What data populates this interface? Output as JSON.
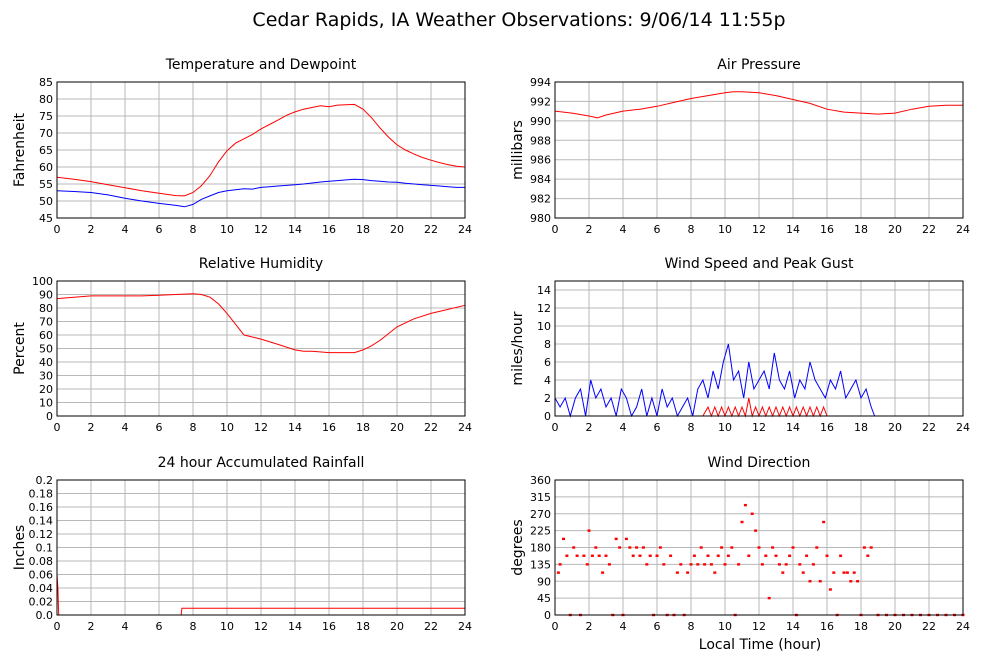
{
  "page_title": "Cedar Rapids, IA Weather Observations: 9/06/14 11:55p",
  "x_axis_title": "Local Time (hour)",
  "chart_data": [
    {
      "id": "temperature",
      "type": "line",
      "title": "Temperature and Dewpoint",
      "xlabel": "",
      "ylabel": "Fahrenheit",
      "xlim": [
        0,
        24
      ],
      "ylim": [
        45,
        85
      ],
      "xticks": [
        0,
        2,
        4,
        6,
        8,
        10,
        12,
        14,
        16,
        18,
        20,
        22,
        24
      ],
      "yticks": [
        45,
        50,
        55,
        60,
        65,
        70,
        75,
        80,
        85
      ],
      "grid": true,
      "series": [
        {
          "color": "#ff0000",
          "x": [
            0,
            1,
            2,
            3,
            4,
            5,
            6,
            7,
            7.5,
            8,
            8.5,
            9,
            9.5,
            10,
            10.5,
            11,
            11.5,
            12,
            12.5,
            13,
            13.5,
            14,
            14.5,
            15,
            15.5,
            16,
            16.5,
            17,
            17.5,
            18,
            18.5,
            19,
            19.5,
            20,
            20.5,
            21,
            21.5,
            22,
            22.5,
            23,
            23.5,
            24
          ],
          "y": [
            57,
            56.4,
            55.7,
            54.8,
            53.9,
            53,
            52.3,
            51.6,
            51.5,
            52.5,
            54.5,
            57.5,
            61.5,
            64.8,
            67,
            68.3,
            69.6,
            71.2,
            72.5,
            73.8,
            75.2,
            76.2,
            77,
            77.5,
            78,
            77.7,
            78.2,
            78.3,
            78.4,
            77,
            74.5,
            71.5,
            68.8,
            66.5,
            65,
            63.8,
            62.8,
            62,
            61.3,
            60.7,
            60.2,
            60
          ]
        },
        {
          "color": "#0000ff",
          "x": [
            0,
            1,
            2,
            3,
            4,
            5,
            6,
            7,
            7.5,
            8,
            8.5,
            9,
            9.5,
            10,
            10.5,
            11,
            11.5,
            12,
            12.5,
            13,
            13.5,
            14,
            14.5,
            15,
            15.5,
            16,
            16.5,
            17,
            17.5,
            18,
            18.5,
            19,
            19.5,
            20,
            20.5,
            21,
            21.5,
            22,
            22.5,
            23,
            23.5,
            24
          ],
          "y": [
            53,
            52.8,
            52.5,
            51.8,
            50.8,
            50,
            49.3,
            48.7,
            48.3,
            49,
            50.5,
            51.5,
            52.5,
            53,
            53.3,
            53.6,
            53.5,
            54,
            54.2,
            54.4,
            54.6,
            54.8,
            55,
            55.3,
            55.6,
            55.8,
            56,
            56.2,
            56.4,
            56.3,
            56,
            55.8,
            55.6,
            55.5,
            55.2,
            55,
            54.8,
            54.6,
            54.4,
            54.2,
            54,
            54
          ]
        }
      ]
    },
    {
      "id": "pressure",
      "type": "line",
      "title": "Air Pressure",
      "xlabel": "",
      "ylabel": "millibars",
      "xlim": [
        0,
        24
      ],
      "ylim": [
        980,
        994
      ],
      "xticks": [
        0,
        2,
        4,
        6,
        8,
        10,
        12,
        14,
        16,
        18,
        20,
        22,
        24
      ],
      "yticks": [
        980,
        982,
        984,
        986,
        988,
        990,
        992,
        994
      ],
      "grid": true,
      "series": [
        {
          "color": "#ff0000",
          "x": [
            0,
            1,
            2,
            2.5,
            3,
            4,
            5,
            6,
            7,
            8,
            9,
            10,
            10.5,
            11,
            12,
            13,
            14,
            15,
            16,
            17,
            18,
            19,
            20,
            21,
            22,
            23,
            24
          ],
          "y": [
            991,
            990.8,
            990.5,
            990.3,
            990.6,
            991,
            991.2,
            991.5,
            991.9,
            992.3,
            992.6,
            992.9,
            993,
            993,
            992.9,
            992.6,
            992.2,
            991.8,
            991.2,
            990.9,
            990.8,
            990.7,
            990.8,
            991.2,
            991.5,
            991.6,
            991.6
          ]
        }
      ]
    },
    {
      "id": "humidity",
      "type": "line",
      "title": "Relative Humidity",
      "xlabel": "",
      "ylabel": "Percent",
      "xlim": [
        0,
        24
      ],
      "ylim": [
        0,
        100
      ],
      "xticks": [
        0,
        2,
        4,
        6,
        8,
        10,
        12,
        14,
        16,
        18,
        20,
        22,
        24
      ],
      "yticks": [
        0,
        10,
        20,
        30,
        40,
        50,
        60,
        70,
        80,
        90,
        100
      ],
      "grid": true,
      "series": [
        {
          "color": "#ff0000",
          "x": [
            0,
            1,
            2,
            3,
            4,
            5,
            6,
            7,
            8,
            8.5,
            9,
            9.5,
            10,
            10.5,
            11,
            12,
            13,
            14,
            14.5,
            15,
            16,
            17,
            17.5,
            18,
            18.5,
            19,
            19.5,
            20,
            21,
            22,
            23,
            24
          ],
          "y": [
            87,
            88,
            89,
            89,
            89,
            89,
            89.5,
            90,
            90.5,
            90,
            88,
            83,
            76,
            68,
            60,
            57,
            53,
            49,
            48,
            48,
            47,
            47,
            47,
            49,
            52,
            56,
            61,
            66,
            72,
            76,
            79,
            82
          ]
        }
      ]
    },
    {
      "id": "wind-speed",
      "type": "line",
      "title": "Wind Speed and Peak Gust",
      "xlabel": "",
      "ylabel": "miles/hour",
      "xlim": [
        0,
        24
      ],
      "ylim": [
        0,
        15
      ],
      "xticks": [
        0,
        2,
        4,
        6,
        8,
        10,
        12,
        14,
        16,
        18,
        20,
        22,
        24
      ],
      "yticks": [
        0,
        2,
        4,
        6,
        8,
        10,
        12,
        14
      ],
      "grid": true,
      "series": [
        {
          "color": "#0000ff",
          "x": [
            0,
            0.3,
            0.6,
            0.9,
            1.2,
            1.5,
            1.8,
            2.1,
            2.4,
            2.7,
            3,
            3.3,
            3.6,
            3.9,
            4.2,
            4.5,
            4.8,
            5.1,
            5.4,
            5.7,
            6,
            6.3,
            6.6,
            6.9,
            7.2,
            7.5,
            7.8,
            8.1,
            8.4,
            8.7,
            9,
            9.3,
            9.6,
            9.9,
            10.2,
            10.5,
            10.8,
            11.1,
            11.4,
            11.7,
            12,
            12.3,
            12.6,
            12.9,
            13.2,
            13.5,
            13.8,
            14.1,
            14.4,
            14.7,
            15,
            15.3,
            15.6,
            15.9,
            16.2,
            16.5,
            16.8,
            17.1,
            17.4,
            17.7,
            18,
            18.3,
            18.6,
            18.8,
            19,
            20,
            21,
            22,
            23,
            24
          ],
          "y": [
            2,
            1,
            2,
            0,
            2,
            3,
            0,
            4,
            2,
            3,
            1,
            2,
            0,
            3,
            2,
            0,
            1,
            3,
            0,
            2,
            0,
            3,
            1,
            2,
            0,
            1,
            2,
            0,
            3,
            4,
            2,
            5,
            3,
            6,
            8,
            4,
            5,
            2,
            6,
            3,
            4,
            5,
            3,
            7,
            4,
            3,
            5,
            2,
            4,
            3,
            6,
            4,
            3,
            2,
            4,
            3,
            5,
            2,
            3,
            4,
            2,
            3,
            1,
            0,
            0,
            0,
            0,
            0,
            0,
            0
          ]
        },
        {
          "color": "#ff0000",
          "x": [
            0,
            8.7,
            9,
            9.2,
            9.4,
            9.6,
            9.8,
            10,
            10.2,
            10.4,
            10.6,
            10.8,
            11,
            11.2,
            11.4,
            11.6,
            11.8,
            12,
            12.2,
            12.4,
            12.6,
            12.8,
            13,
            13.2,
            13.4,
            13.6,
            13.8,
            14,
            14.2,
            14.4,
            14.6,
            14.8,
            15,
            15.2,
            15.4,
            15.6,
            15.8,
            16,
            24
          ],
          "y": [
            0,
            0,
            1,
            0,
            1,
            0,
            1,
            0,
            1,
            0,
            1,
            0,
            1,
            0,
            2,
            0,
            1,
            0,
            1,
            0,
            1,
            0,
            1,
            0,
            1,
            0,
            1,
            0,
            1,
            0,
            1,
            0,
            1,
            0,
            1,
            0,
            1,
            0,
            0
          ]
        }
      ]
    },
    {
      "id": "rainfall",
      "type": "line",
      "title": "24 hour Accumulated Rainfall",
      "xlabel": "",
      "ylabel": "Inches",
      "xlim": [
        0,
        24
      ],
      "ylim": [
        0,
        0.2
      ],
      "xticks": [
        0,
        2,
        4,
        6,
        8,
        10,
        12,
        14,
        16,
        18,
        20,
        22,
        24
      ],
      "yticks": [
        0,
        0.02,
        0.04,
        0.06,
        0.08,
        0.1,
        0.12,
        0.14,
        0.16,
        0.18,
        0.2
      ],
      "ytick_labels": [
        "0.0",
        "0.02",
        "0.04",
        "0.06",
        "0.08",
        "0.1",
        "0.12",
        "0.14",
        "0.16",
        "0.18",
        "0.2"
      ],
      "grid": true,
      "series": [
        {
          "color": "#ff0000",
          "x": [
            0,
            0.05,
            0.1,
            0.15,
            7.3,
            7.35,
            24
          ],
          "y": [
            0.06,
            0.04,
            0.0,
            0.0,
            0.0,
            0.01,
            0.01
          ]
        }
      ]
    },
    {
      "id": "wind-direction",
      "type": "scatter",
      "title": "Wind Direction",
      "xlabel": "Local Time (hour)",
      "ylabel": "degrees",
      "xlim": [
        0,
        24
      ],
      "ylim": [
        0,
        360
      ],
      "xticks": [
        0,
        2,
        4,
        6,
        8,
        10,
        12,
        14,
        16,
        18,
        20,
        22,
        24
      ],
      "yticks": [
        0,
        45,
        90,
        135,
        180,
        225,
        270,
        315,
        360
      ],
      "grid": true,
      "series": [
        {
          "color": "#ff0000",
          "x": [
            0.2,
            0.3,
            0.5,
            0.7,
            0.9,
            1.1,
            1.3,
            1.5,
            1.7,
            1.9,
            2.0,
            2.2,
            2.4,
            2.6,
            2.8,
            3.0,
            3.2,
            3.4,
            3.6,
            3.8,
            4.0,
            4.2,
            4.4,
            4.6,
            4.8,
            5.0,
            5.2,
            5.4,
            5.6,
            5.8,
            6.0,
            6.2,
            6.4,
            6.6,
            6.8,
            7.0,
            7.2,
            7.4,
            7.6,
            7.8,
            8.0,
            8.2,
            8.4,
            8.6,
            8.8,
            9.0,
            9.2,
            9.4,
            9.6,
            9.8,
            10.0,
            10.2,
            10.4,
            10.6,
            10.8,
            11.0,
            11.2,
            11.4,
            11.6,
            11.8,
            12.0,
            12.2,
            12.4,
            12.6,
            12.8,
            13.0,
            13.2,
            13.4,
            13.6,
            13.8,
            14.0,
            14.2,
            14.4,
            14.6,
            14.8,
            15.0,
            15.2,
            15.4,
            15.6,
            15.8,
            16.0,
            16.2,
            16.4,
            16.6,
            16.8,
            17.0,
            17.2,
            17.4,
            17.6,
            17.8,
            18.0,
            18.2,
            18.4,
            18.6,
            19.0,
            19.5,
            20.0,
            20.5,
            21.0,
            21.5,
            22.0,
            22.5,
            23.0,
            23.5,
            24.0
          ],
          "y": [
            113,
            135,
            203,
            158,
            0,
            180,
            158,
            0,
            158,
            135,
            225,
            158,
            180,
            158,
            113,
            158,
            135,
            0,
            203,
            180,
            0,
            203,
            180,
            158,
            180,
            158,
            180,
            135,
            158,
            0,
            158,
            180,
            135,
            0,
            158,
            0,
            113,
            135,
            0,
            113,
            135,
            158,
            135,
            180,
            135,
            158,
            135,
            113,
            158,
            180,
            135,
            158,
            180,
            0,
            135,
            248,
            293,
            158,
            270,
            225,
            180,
            135,
            158,
            45,
            180,
            158,
            135,
            113,
            135,
            158,
            180,
            0,
            135,
            113,
            158,
            90,
            135,
            180,
            90,
            248,
            158,
            68,
            113,
            0,
            158,
            113,
            113,
            90,
            113,
            90,
            0,
            180,
            158,
            180,
            0,
            0,
            0,
            0,
            0,
            0,
            0,
            0,
            0,
            0,
            0
          ]
        }
      ]
    }
  ]
}
